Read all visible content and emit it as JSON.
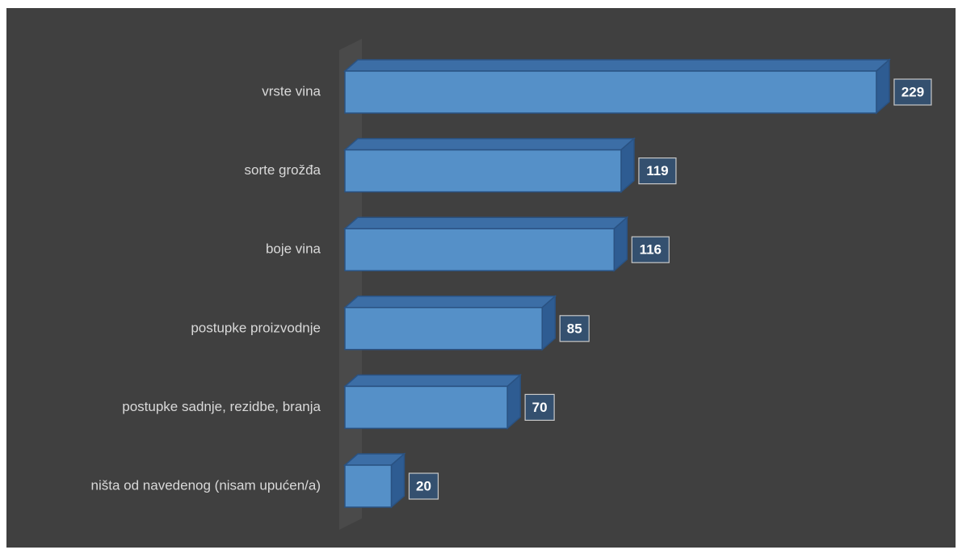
{
  "chart_data": {
    "type": "bar3d_horizontal",
    "categories": [
      "vrste vina",
      "sorte grožđa",
      "boje vina",
      "postupke proizvodnje",
      "postupke sadnje, rezidbe, branja",
      "ništa od navedenog (nisam upućen/a)"
    ],
    "values": [
      229,
      119,
      116,
      85,
      70,
      20
    ],
    "color": "#5590c8"
  }
}
